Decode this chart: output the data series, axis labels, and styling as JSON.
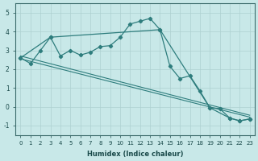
{
  "xlabel": "Humidex (Indice chaleur)",
  "bg_color": "#c8e8e8",
  "line_color": "#2e7d7d",
  "grid_color": "#aed0d0",
  "ylim": [
    -1.5,
    5.5
  ],
  "xlim": [
    -0.5,
    23.5
  ],
  "yticks": [
    -1,
    0,
    1,
    2,
    3,
    4,
    5
  ],
  "xticks": [
    0,
    1,
    2,
    3,
    4,
    5,
    6,
    7,
    8,
    9,
    10,
    11,
    12,
    13,
    14,
    15,
    16,
    17,
    18,
    19,
    20,
    21,
    22,
    23
  ],
  "main_x": [
    0,
    1,
    2,
    3,
    4,
    5,
    6,
    7,
    8,
    9,
    10,
    11,
    12,
    13,
    14,
    15,
    16,
    17,
    18,
    19,
    20,
    21,
    22,
    23
  ],
  "main_y": [
    2.6,
    2.3,
    3.0,
    3.7,
    2.7,
    3.0,
    2.75,
    2.9,
    3.2,
    3.25,
    3.7,
    4.4,
    4.55,
    4.7,
    4.1,
    2.15,
    1.5,
    1.65,
    0.85,
    -0.05,
    -0.1,
    -0.6,
    -0.75,
    -0.65
  ],
  "upper_x": [
    0,
    3,
    14,
    19,
    21,
    22,
    23
  ],
  "upper_y": [
    2.6,
    3.7,
    4.1,
    -0.05,
    -0.6,
    -0.75,
    -0.65
  ],
  "trend1_x": [
    0,
    23
  ],
  "trend1_y": [
    2.55,
    -0.55
  ],
  "trend2_x": [
    0,
    23
  ],
  "trend2_y": [
    2.7,
    -0.45
  ]
}
